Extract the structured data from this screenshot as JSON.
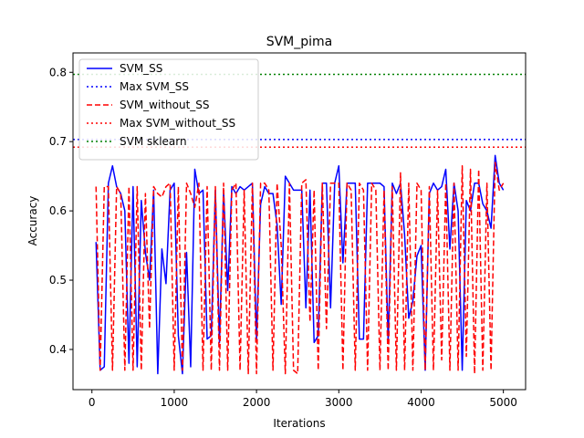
{
  "chart_data": {
    "type": "line",
    "title": "SVM_pima",
    "xlabel": "Iterations",
    "ylabel": "Accuracy",
    "xlim": [
      -230,
      5270
    ],
    "ylim": [
      0.342,
      0.828
    ],
    "xticks": [
      0,
      1000,
      2000,
      3000,
      4000,
      5000
    ],
    "yticks": [
      0.4,
      0.5,
      0.6,
      0.7,
      0.8
    ],
    "grid": false,
    "legend_position": "top-left",
    "series": [
      {
        "name": "SVM_SS",
        "kind": "line",
        "style": "solid",
        "color": "#0000ff",
        "x": [
          50,
          100,
          150,
          200,
          250,
          300,
          350,
          400,
          450,
          500,
          550,
          600,
          650,
          700,
          750,
          800,
          850,
          900,
          950,
          1000,
          1050,
          1100,
          1150,
          1200,
          1250,
          1300,
          1350,
          1400,
          1450,
          1500,
          1550,
          1600,
          1650,
          1700,
          1750,
          1800,
          1850,
          1900,
          1950,
          2000,
          2050,
          2100,
          2150,
          2200,
          2250,
          2300,
          2350,
          2400,
          2450,
          2500,
          2550,
          2600,
          2650,
          2700,
          2750,
          2800,
          2850,
          2900,
          2950,
          3000,
          3050,
          3100,
          3150,
          3200,
          3250,
          3300,
          3350,
          3400,
          3450,
          3500,
          3550,
          3600,
          3650,
          3700,
          3750,
          3800,
          3850,
          3900,
          3950,
          4000,
          4050,
          4100,
          4150,
          4200,
          4250,
          4300,
          4350,
          4400,
          4450,
          4500,
          4550,
          4600,
          4650,
          4700,
          4750,
          4800,
          4850,
          4900,
          4950,
          5000
        ],
        "y": [
          0.555,
          0.37,
          0.375,
          0.64,
          0.665,
          0.635,
          0.625,
          0.6,
          0.38,
          0.635,
          0.375,
          0.615,
          0.54,
          0.5,
          0.63,
          0.365,
          0.545,
          0.495,
          0.63,
          0.64,
          0.42,
          0.365,
          0.54,
          0.375,
          0.66,
          0.625,
          0.63,
          0.415,
          0.42,
          0.63,
          0.41,
          0.63,
          0.485,
          0.635,
          0.625,
          0.635,
          0.63,
          0.635,
          0.64,
          0.415,
          0.61,
          0.635,
          0.625,
          0.625,
          0.58,
          0.465,
          0.65,
          0.64,
          0.63,
          0.63,
          0.63,
          0.46,
          0.63,
          0.41,
          0.42,
          0.64,
          0.64,
          0.46,
          0.64,
          0.665,
          0.525,
          0.64,
          0.64,
          0.64,
          0.415,
          0.415,
          0.64,
          0.64,
          0.64,
          0.64,
          0.635,
          0.41,
          0.64,
          0.625,
          0.64,
          0.565,
          0.445,
          0.47,
          0.535,
          0.55,
          0.37,
          0.625,
          0.64,
          0.63,
          0.635,
          0.66,
          0.545,
          0.64,
          0.6,
          0.37,
          0.615,
          0.6,
          0.64,
          0.64,
          0.61,
          0.6,
          0.575,
          0.68,
          0.64,
          0.63
        ]
      },
      {
        "name": "Max SVM_SS",
        "kind": "hline",
        "style": "dotted",
        "color": "#0000ff",
        "y": 0.703
      },
      {
        "name": "SVM_without_SS",
        "kind": "line",
        "style": "dashed",
        "color": "#ff0000",
        "x": [
          50,
          100,
          150,
          200,
          250,
          300,
          350,
          400,
          450,
          500,
          550,
          600,
          650,
          700,
          750,
          800,
          850,
          900,
          950,
          1000,
          1050,
          1100,
          1150,
          1200,
          1250,
          1300,
          1350,
          1400,
          1450,
          1500,
          1550,
          1600,
          1650,
          1700,
          1750,
          1800,
          1850,
          1900,
          1950,
          2000,
          2050,
          2100,
          2150,
          2200,
          2250,
          2300,
          2350,
          2400,
          2450,
          2500,
          2550,
          2600,
          2650,
          2700,
          2750,
          2800,
          2850,
          2900,
          2950,
          3000,
          3050,
          3100,
          3150,
          3200,
          3250,
          3300,
          3350,
          3400,
          3450,
          3500,
          3550,
          3600,
          3650,
          3700,
          3750,
          3800,
          3850,
          3900,
          3950,
          4000,
          4050,
          4100,
          4150,
          4200,
          4250,
          4300,
          4350,
          4400,
          4450,
          4500,
          4550,
          4600,
          4650,
          4700,
          4750,
          4800,
          4850,
          4900,
          4950,
          5000
        ],
        "y": [
          0.635,
          0.37,
          0.635,
          0.635,
          0.37,
          0.635,
          0.625,
          0.37,
          0.635,
          0.37,
          0.635,
          0.37,
          0.625,
          0.43,
          0.635,
          0.625,
          0.62,
          0.635,
          0.64,
          0.37,
          0.635,
          0.37,
          0.64,
          0.625,
          0.605,
          0.64,
          0.37,
          0.635,
          0.37,
          0.635,
          0.37,
          0.64,
          0.37,
          0.63,
          0.64,
          0.37,
          0.63,
          0.365,
          0.64,
          0.365,
          0.64,
          0.64,
          0.63,
          0.37,
          0.64,
          0.55,
          0.365,
          0.64,
          0.37,
          0.365,
          0.64,
          0.645,
          0.44,
          0.63,
          0.37,
          0.64,
          0.43,
          0.64,
          0.64,
          0.64,
          0.37,
          0.64,
          0.63,
          0.37,
          0.64,
          0.63,
          0.37,
          0.64,
          0.63,
          0.37,
          0.63,
          0.37,
          0.635,
          0.37,
          0.655,
          0.37,
          0.64,
          0.37,
          0.64,
          0.63,
          0.37,
          0.635,
          0.37,
          0.63,
          0.385,
          0.64,
          0.37,
          0.64,
          0.37,
          0.665,
          0.39,
          0.66,
          0.365,
          0.66,
          0.37,
          0.64,
          0.37,
          0.67,
          0.63,
          0.64
        ]
      },
      {
        "name": "Max SVM_without_SS",
        "kind": "hline",
        "style": "dotted",
        "color": "#ff0000",
        "y": 0.692
      },
      {
        "name": "SVM sklearn",
        "kind": "hline",
        "style": "dotted",
        "color": "#008000",
        "y": 0.797
      }
    ]
  }
}
